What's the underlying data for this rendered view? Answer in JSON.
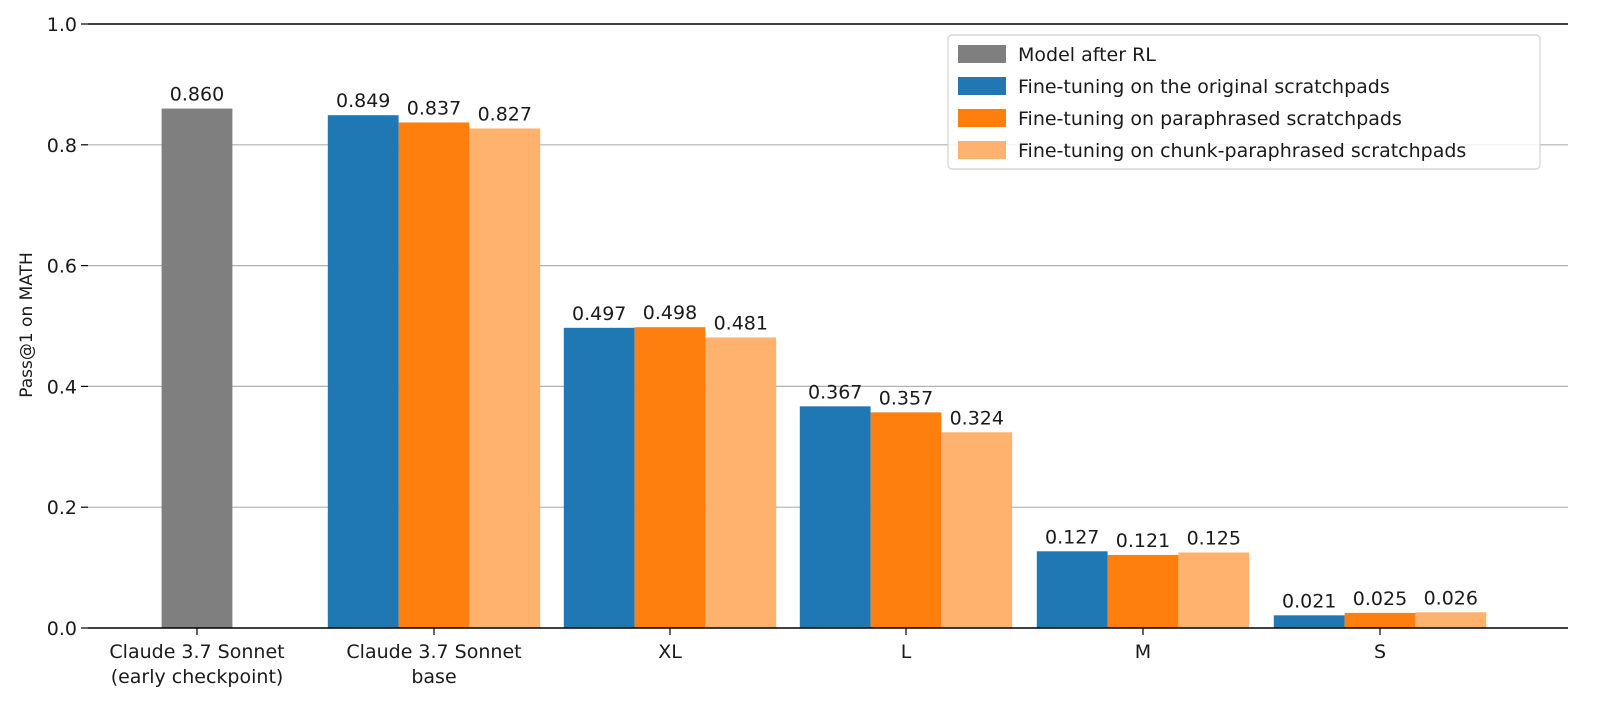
{
  "chart_data": {
    "type": "bar",
    "title": "",
    "xlabel": "",
    "ylabel": "Pass@1 on MATH",
    "ylim": [
      0,
      1.0
    ],
    "yticks": [
      "0.0",
      "0.2",
      "0.4",
      "0.6",
      "0.8",
      "1.0"
    ],
    "grid": "horizontal",
    "legend_position": "top-right",
    "categories": [
      [
        "Claude 3.7 Sonnet",
        "(early checkpoint)"
      ],
      [
        "Claude 3.7 Sonnet",
        "base"
      ],
      [
        "XL"
      ],
      [
        "L"
      ],
      [
        "M"
      ],
      [
        "S"
      ]
    ],
    "series": [
      {
        "name": "Model after RL",
        "color": "#7f7f7f",
        "values": [
          0.86,
          null,
          null,
          null,
          null,
          null
        ],
        "labels": [
          "0.860",
          null,
          null,
          null,
          null,
          null
        ]
      },
      {
        "name": "Fine-tuning on the original scratchpads",
        "color": "#1f77b4",
        "values": [
          null,
          0.849,
          0.497,
          0.367,
          0.127,
          0.021
        ],
        "labels": [
          null,
          "0.849",
          "0.497",
          "0.367",
          "0.127",
          "0.021"
        ]
      },
      {
        "name": "Fine-tuning on paraphrased scratchpads",
        "color": "#ff7f0e",
        "values": [
          null,
          0.837,
          0.498,
          0.357,
          0.121,
          0.025
        ],
        "labels": [
          null,
          "0.837",
          "0.498",
          "0.357",
          "0.121",
          "0.025"
        ]
      },
      {
        "name": "Fine-tuning on chunk-paraphrased scratchpads",
        "color": "#ffb26e",
        "values": [
          null,
          0.827,
          0.481,
          0.324,
          0.125,
          0.026
        ],
        "labels": [
          null,
          "0.827",
          "0.481",
          "0.324",
          "0.125",
          "0.026"
        ]
      }
    ]
  }
}
